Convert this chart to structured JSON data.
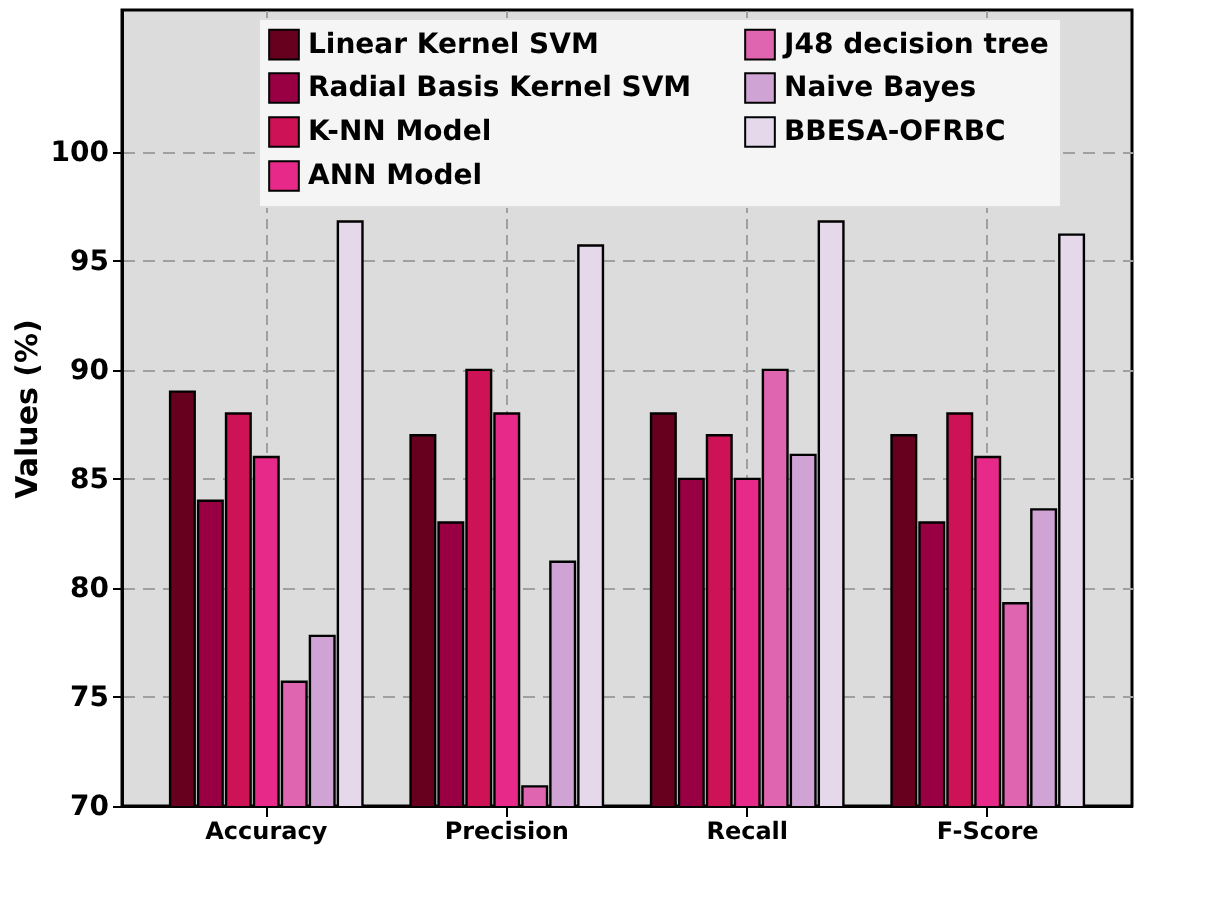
{
  "chart_data": {
    "type": "bar",
    "ylabel": "Values (%)",
    "categories": [
      "Accuracy",
      "Precision",
      "Recall",
      "F-Score"
    ],
    "series": [
      {
        "name": "Linear Kernel SVM",
        "color": "#67001f",
        "values": [
          89,
          87,
          88,
          87
        ]
      },
      {
        "name": "Radial Basis Kernel SVM",
        "color": "#980043",
        "values": [
          84,
          83,
          85,
          83
        ]
      },
      {
        "name": "K-NN Model",
        "color": "#ce1256",
        "values": [
          88,
          90,
          87,
          88
        ]
      },
      {
        "name": "ANN Model",
        "color": "#e7298a",
        "values": [
          86,
          88,
          85,
          86
        ]
      },
      {
        "name": "J48 decision tree",
        "color": "#df65b0",
        "values": [
          75.7,
          70.9,
          90,
          79.3
        ]
      },
      {
        "name": "Naive Bayes",
        "color": "#cfa3d3",
        "values": [
          77.8,
          81.2,
          86.1,
          83.6
        ]
      },
      {
        "name": "BBESA-OFRBC",
        "color": "#e5d8ea",
        "values": [
          96.8,
          95.7,
          96.8,
          96.2
        ]
      }
    ],
    "ylim": [
      70,
      106.5
    ],
    "yticks": [
      70,
      75,
      80,
      85,
      90,
      95,
      100
    ],
    "grid": true,
    "legend": "top right"
  }
}
